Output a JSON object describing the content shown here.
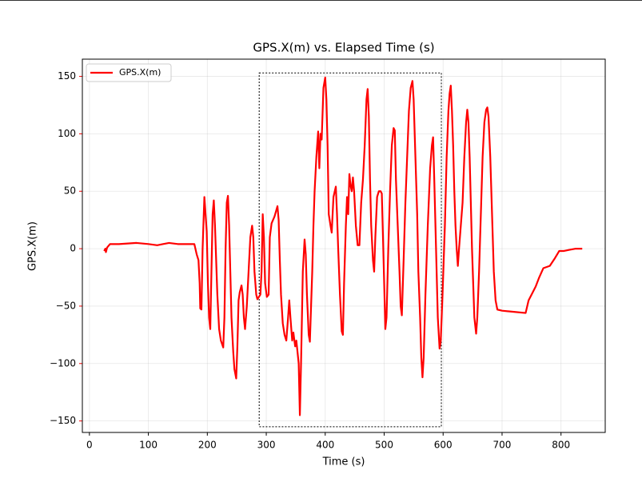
{
  "chart_data": {
    "type": "line",
    "title": "GPS.X(m) vs. Elapsed Time (s)",
    "x_label": "Time (s)",
    "y_label": "GPS.X(m)",
    "xlim": [
      -12,
      875
    ],
    "ylim": [
      -160,
      165
    ],
    "xticks": [
      0,
      100,
      200,
      300,
      400,
      500,
      600,
      700,
      800
    ],
    "yticks": [
      {
        "value": -150,
        "label": "−150"
      },
      {
        "value": -100,
        "label": "−100"
      },
      {
        "value": -50,
        "label": "−50"
      },
      0,
      50,
      100,
      150
    ],
    "grid": true,
    "legend": "upper left",
    "axis_label_color": "#ff0000",
    "highlight_box": {
      "xlim": [
        288,
        597
      ],
      "ylim": [
        -155,
        153
      ]
    },
    "x": [
      25,
      27,
      28,
      30,
      35,
      50,
      80,
      100,
      115,
      125,
      135,
      150,
      178,
      182,
      185,
      187,
      188,
      190,
      192,
      195,
      197,
      199,
      201,
      203,
      205,
      207,
      209,
      211,
      213,
      215,
      217,
      220,
      223,
      227,
      229,
      231,
      233,
      235,
      237,
      239,
      241,
      244,
      246,
      249,
      251,
      253,
      255,
      258,
      260,
      262,
      264,
      267,
      270,
      273,
      276,
      278,
      280,
      283,
      285,
      290,
      292,
      294,
      296,
      298,
      301,
      304,
      306,
      309,
      314,
      319,
      321,
      323,
      325,
      328,
      331,
      334,
      337,
      339,
      341,
      344,
      346,
      349,
      351,
      353,
      355,
      357,
      359,
      362,
      365,
      367,
      369,
      372,
      374,
      376,
      378,
      380,
      382,
      385,
      388,
      390,
      392,
      394,
      397,
      400,
      402,
      404,
      406,
      409,
      411,
      414,
      418,
      420,
      422,
      425,
      428,
      430,
      432,
      435,
      437,
      439,
      441,
      443,
      445,
      447,
      449,
      452,
      455,
      458,
      461,
      464,
      467,
      470,
      472,
      474,
      476,
      478,
      481,
      483,
      485,
      488,
      491,
      494,
      496,
      498,
      500,
      502,
      504,
      507,
      510,
      513,
      516,
      518,
      520,
      523,
      526,
      528,
      530,
      533,
      536,
      539,
      542,
      545,
      548,
      550,
      553,
      556,
      558,
      561,
      563,
      565,
      567,
      570,
      574,
      578,
      581,
      583,
      585,
      588,
      591,
      594,
      596,
      599,
      603,
      606,
      609,
      611,
      613,
      615,
      617,
      619,
      621,
      623,
      625,
      627,
      630,
      633,
      636,
      639,
      641,
      643,
      645,
      647,
      649,
      651,
      653,
      656,
      658,
      661,
      664,
      667,
      670,
      673,
      675,
      677,
      680,
      683,
      686,
      689,
      692,
      700,
      720,
      740,
      745,
      750,
      757,
      763,
      770,
      781,
      790,
      797,
      805,
      814,
      825,
      836
    ],
    "series": [
      {
        "name": "GPS.X(m)",
        "color": "#ff0000",
        "values": [
          -2,
          0,
          -3,
          1,
          4,
          4,
          5,
          4,
          3,
          4,
          5,
          4,
          4,
          -5,
          -10,
          -30,
          -52,
          -53,
          0,
          45,
          30,
          15,
          -30,
          -60,
          -70,
          -20,
          30,
          42,
          20,
          -10,
          -40,
          -70,
          -80,
          -86,
          -60,
          0,
          40,
          46,
          20,
          -20,
          -60,
          -90,
          -105,
          -113,
          -85,
          -45,
          -38,
          -32,
          -40,
          -60,
          -70,
          -50,
          -20,
          10,
          20,
          10,
          -20,
          -40,
          -44,
          -40,
          -20,
          30,
          10,
          -30,
          -42,
          -40,
          10,
          22,
          28,
          37,
          25,
          -10,
          -40,
          -65,
          -75,
          -80,
          -60,
          -45,
          -60,
          -80,
          -73,
          -85,
          -80,
          -90,
          -100,
          -145,
          -100,
          -20,
          8,
          -5,
          -40,
          -75,
          -81,
          -50,
          -20,
          20,
          50,
          80,
          102,
          70,
          100,
          95,
          140,
          149,
          130,
          90,
          30,
          20,
          14,
          45,
          54,
          30,
          0,
          -40,
          -72,
          -75,
          -30,
          20,
          45,
          30,
          65,
          55,
          50,
          62,
          50,
          20,
          3,
          3,
          40,
          60,
          90,
          130,
          139,
          115,
          60,
          20,
          -10,
          -20,
          10,
          45,
          50,
          50,
          48,
          10,
          -30,
          -70,
          -60,
          0,
          50,
          90,
          105,
          103,
          60,
          20,
          -20,
          -50,
          -58,
          -10,
          40,
          80,
          120,
          140,
          146,
          130,
          80,
          30,
          -20,
          -60,
          -95,
          -112,
          -95,
          -40,
          20,
          70,
          90,
          97,
          60,
          0,
          -60,
          -87,
          -80,
          -40,
          20,
          80,
          120,
          135,
          142,
          120,
          90,
          50,
          20,
          0,
          -15,
          0,
          20,
          40,
          80,
          110,
          121,
          110,
          80,
          40,
          0,
          -30,
          -60,
          -74,
          -60,
          -20,
          30,
          80,
          110,
          121,
          123,
          115,
          80,
          30,
          -20,
          -45,
          -53,
          -54,
          -55,
          -56,
          -45,
          -40,
          -33,
          -25,
          -17,
          -15,
          -8,
          -2,
          -2,
          -1,
          0,
          0
        ]
      }
    ]
  }
}
